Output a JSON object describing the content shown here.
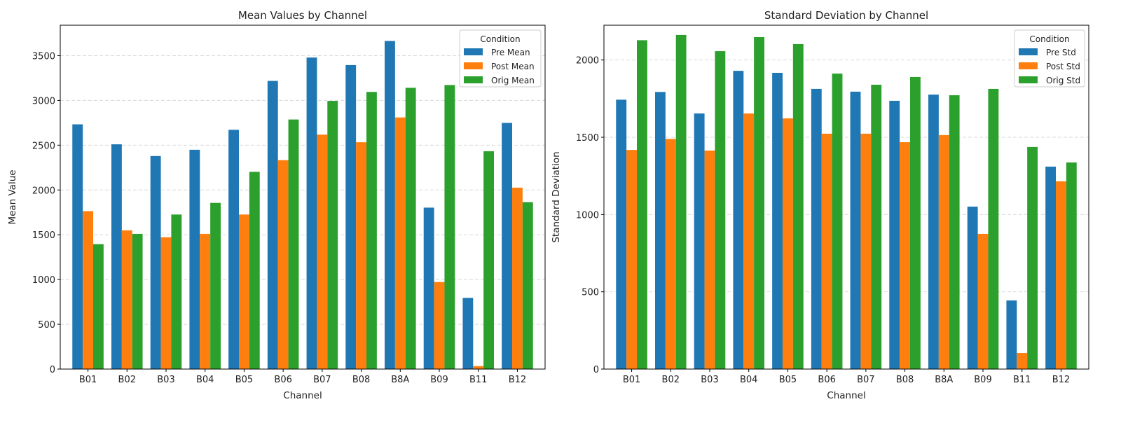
{
  "colors": {
    "pre": "#1f77b4",
    "post": "#ff7f0e",
    "orig": "#2ca02c",
    "grid": "#d9d9d9"
  },
  "chart_data": [
    {
      "type": "bar",
      "title": "Mean Values by Channel",
      "xlabel": "Channel",
      "ylabel": "Mean Value",
      "categories": [
        "B01",
        "B02",
        "B03",
        "B04",
        "B05",
        "B06",
        "B07",
        "B08",
        "B8A",
        "B09",
        "B11",
        "B12"
      ],
      "ylim": [
        0,
        3840
      ],
      "yticks": [
        0,
        500,
        1000,
        1500,
        2000,
        2500,
        3000,
        3500
      ],
      "grid": "y, dashed",
      "legend": {
        "title": "Condition",
        "placement": "top-right"
      },
      "series": [
        {
          "name": "Pre Mean",
          "values": [
            2733,
            2510,
            2379,
            2449,
            2672,
            3218,
            3479,
            3395,
            3664,
            1803,
            795,
            2749
          ]
        },
        {
          "name": "Post Mean",
          "values": [
            1764,
            1549,
            1472,
            1510,
            1726,
            2333,
            2618,
            2533,
            2810,
            972,
            33,
            2026
          ]
        },
        {
          "name": "Orig Mean",
          "values": [
            1395,
            1510,
            1726,
            1856,
            2203,
            2787,
            2995,
            3095,
            3141,
            3172,
            2433,
            1864
          ]
        }
      ]
    },
    {
      "type": "bar",
      "title": "Standard Deviation by Channel",
      "xlabel": "Channel",
      "ylabel": "Standard Deviation",
      "categories": [
        "B01",
        "B02",
        "B03",
        "B04",
        "B05",
        "B06",
        "B07",
        "B08",
        "B8A",
        "B09",
        "B11",
        "B12"
      ],
      "ylim": [
        0,
        2225
      ],
      "yticks": [
        0,
        500,
        1000,
        1500,
        2000
      ],
      "grid": "y, dashed",
      "legend": {
        "title": "Condition",
        "placement": "top-right"
      },
      "series": [
        {
          "name": "Pre Std",
          "values": [
            1743,
            1793,
            1654,
            1930,
            1917,
            1813,
            1795,
            1736,
            1776,
            1051,
            444,
            1310
          ]
        },
        {
          "name": "Post Std",
          "values": [
            1418,
            1489,
            1414,
            1654,
            1622,
            1523,
            1523,
            1468,
            1514,
            875,
            104,
            1215
          ]
        },
        {
          "name": "Orig Std",
          "values": [
            2128,
            2162,
            2057,
            2148,
            2103,
            1912,
            1840,
            1890,
            1772,
            1813,
            1437,
            1337
          ]
        }
      ]
    }
  ]
}
